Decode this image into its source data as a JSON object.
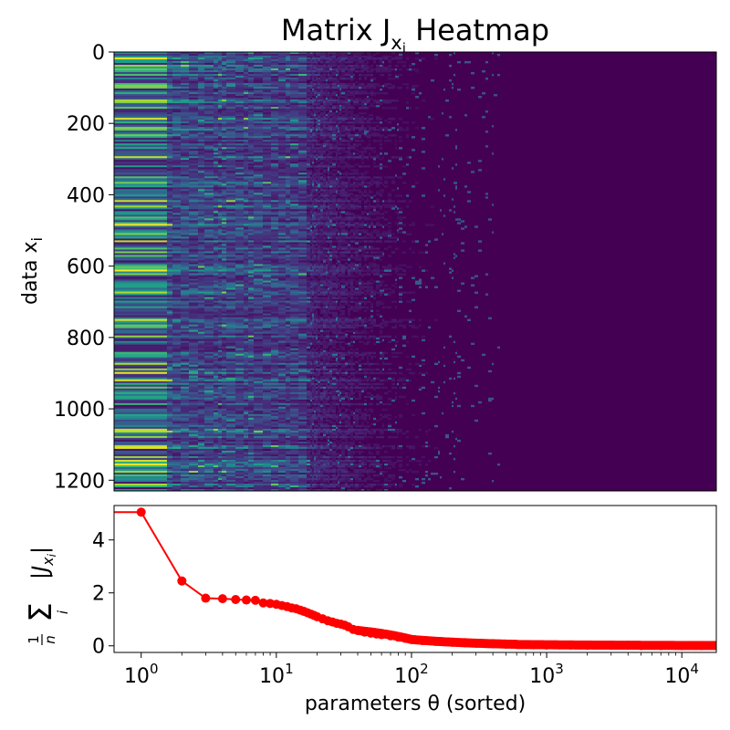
{
  "chart_data": [
    {
      "type": "heatmap",
      "title": "Matrix J",
      "title_subscript": "x",
      "title_subscript2": "i",
      "title_suffix": " Heatmap",
      "ylabel": "data x",
      "ylabel_subscript": "i",
      "xlabel": "",
      "y_range": [
        0,
        1230
      ],
      "y_inverted": true,
      "y_ticks": [
        0,
        200,
        400,
        600,
        800,
        1000,
        1200
      ],
      "y_tick_labels": [
        "0",
        "200",
        "400",
        "600",
        "800",
        "1000",
        "1200"
      ],
      "rows": 1230,
      "columns": 16000,
      "colormap": "viridis",
      "low_color": "#440154",
      "high_color": "#fde725",
      "grid": false
    },
    {
      "type": "line",
      "xlabel": "parameters θ (sorted)",
      "ylabel": "1/n Σ_i |J_xi|",
      "xscale": "log",
      "x_range": [
        0.63,
        18000
      ],
      "y_range": [
        -0.25,
        5.3
      ],
      "x_tick_labels": [
        {
          "base": "10",
          "exp": "0"
        },
        {
          "base": "10",
          "exp": "1"
        },
        {
          "base": "10",
          "exp": "2"
        },
        {
          "base": "10",
          "exp": "3"
        },
        {
          "base": "10",
          "exp": "4"
        }
      ],
      "y_ticks": [
        0,
        2,
        4
      ],
      "y_tick_labels": [
        "0",
        "2",
        "4"
      ],
      "series": [
        {
          "color": "#ff0000",
          "marker": "circle",
          "x": [
            1,
            2,
            3,
            4,
            5,
            6,
            7,
            8,
            9,
            10,
            11,
            12,
            13,
            14,
            15,
            16,
            17,
            18,
            19,
            20,
            22,
            24,
            26,
            28,
            30,
            32,
            34,
            37,
            40,
            45,
            50,
            55,
            60,
            70,
            80,
            90,
            100,
            120,
            150,
            200,
            250,
            300,
            400,
            500,
            600,
            800,
            1000,
            1500,
            2000,
            3000,
            4000,
            5000,
            7000,
            10000,
            14000,
            18000
          ],
          "y": [
            5.05,
            2.45,
            1.8,
            1.78,
            1.75,
            1.73,
            1.72,
            1.62,
            1.6,
            1.57,
            1.52,
            1.48,
            1.43,
            1.4,
            1.35,
            1.3,
            1.25,
            1.2,
            1.15,
            1.1,
            1.02,
            0.95,
            0.9,
            0.85,
            0.82,
            0.78,
            0.72,
            0.62,
            0.58,
            0.52,
            0.48,
            0.45,
            0.42,
            0.38,
            0.33,
            0.28,
            0.24,
            0.2,
            0.17,
            0.14,
            0.12,
            0.1,
            0.08,
            0.06,
            0.05,
            0.04,
            0.03,
            0.03,
            0.02,
            0.02,
            0.02,
            0.01,
            0.01,
            0.01,
            0.01,
            0.01
          ],
          "lead_in_y": 5.05
        }
      ],
      "grid": false
    }
  ]
}
